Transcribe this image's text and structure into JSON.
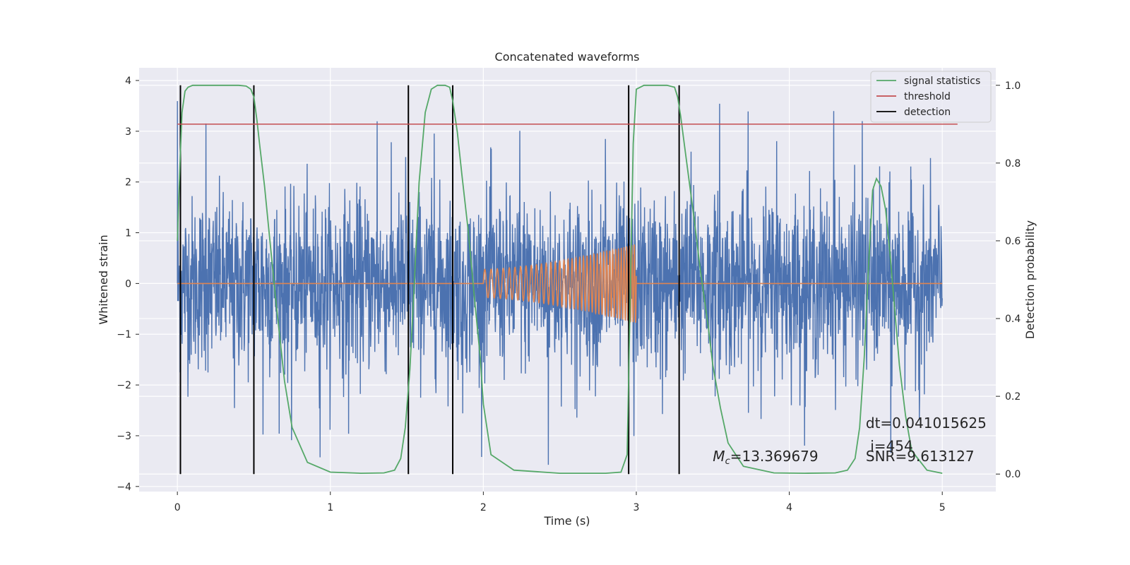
{
  "chart_data": {
    "type": "line",
    "title": "Concatenated waveforms",
    "xlabel": "Time (s)",
    "ylabel": "Whitened strain",
    "y2label": "Detection probability",
    "xlim": [
      -0.25,
      5.35
    ],
    "ylim": [
      -4.1,
      4.25
    ],
    "y2lim": [
      -0.045,
      1.045
    ],
    "xticks": [
      0,
      1,
      2,
      3,
      4,
      5
    ],
    "yticks": [
      -4,
      -3,
      -2,
      -1,
      0,
      1,
      2,
      3,
      4
    ],
    "y2ticks": [
      0.0,
      0.2,
      0.4,
      0.6,
      0.8,
      1.0
    ],
    "xtick_labels": [
      "0",
      "1",
      "2",
      "3",
      "4",
      "5"
    ],
    "ytick_labels": [
      "−4",
      "−3",
      "−2",
      "−1",
      "0",
      "1",
      "2",
      "3",
      "4"
    ],
    "y2tick_labels": [
      "0.0",
      "0.2",
      "0.4",
      "0.6",
      "0.8",
      "1.0"
    ],
    "grid": true,
    "legend_position": "top-right",
    "colors": {
      "strain": "#4c72b0",
      "template": "#dd8452",
      "signal_statistics": "#55a868",
      "threshold": "#c44e52",
      "detection": "#000000",
      "background": "#eaeaf2",
      "grid": "#ffffff"
    },
    "series": [
      {
        "name": "signal statistics",
        "axis": "right",
        "x": [
          0.0,
          0.01,
          0.02,
          0.03,
          0.05,
          0.07,
          0.1,
          0.2,
          0.3,
          0.4,
          0.45,
          0.48,
          0.5,
          0.52,
          0.54,
          0.57,
          0.6,
          0.64,
          0.67,
          0.7,
          0.75,
          0.85,
          1.0,
          1.2,
          1.35,
          1.42,
          1.46,
          1.49,
          1.52,
          1.55,
          1.58,
          1.62,
          1.66,
          1.7,
          1.75,
          1.78,
          1.8,
          1.83,
          1.86,
          1.9,
          1.94,
          1.98,
          2.0,
          2.05,
          2.2,
          2.5,
          2.8,
          2.9,
          2.94,
          2.96,
          2.98,
          3.0,
          3.05,
          3.15,
          3.2,
          3.25,
          3.27,
          3.29,
          3.31,
          3.34,
          3.38,
          3.42,
          3.47,
          3.5,
          3.55,
          3.6,
          3.7,
          3.9,
          4.1,
          4.3,
          4.38,
          4.43,
          4.46,
          4.49,
          4.52,
          4.545,
          4.57,
          4.6,
          4.63,
          4.66,
          4.69,
          4.72,
          4.76,
          4.8,
          4.9,
          5.0
        ],
        "values": [
          0.6,
          0.72,
          0.83,
          0.93,
          0.985,
          0.995,
          1.0,
          1.0,
          1.0,
          1.0,
          0.998,
          0.99,
          0.97,
          0.91,
          0.84,
          0.74,
          0.62,
          0.46,
          0.35,
          0.24,
          0.12,
          0.03,
          0.005,
          0.002,
          0.003,
          0.01,
          0.04,
          0.12,
          0.27,
          0.5,
          0.75,
          0.93,
          0.99,
          1.0,
          1.0,
          0.995,
          0.96,
          0.88,
          0.77,
          0.63,
          0.46,
          0.3,
          0.18,
          0.05,
          0.01,
          0.002,
          0.002,
          0.005,
          0.05,
          0.45,
          0.85,
          0.99,
          1.0,
          1.0,
          1.0,
          0.995,
          0.97,
          0.92,
          0.86,
          0.77,
          0.65,
          0.52,
          0.38,
          0.28,
          0.17,
          0.08,
          0.02,
          0.003,
          0.002,
          0.003,
          0.01,
          0.04,
          0.12,
          0.3,
          0.55,
          0.73,
          0.76,
          0.74,
          0.68,
          0.56,
          0.42,
          0.28,
          0.15,
          0.06,
          0.01,
          0.002
        ]
      },
      {
        "name": "threshold",
        "axis": "right",
        "x": [
          0.0,
          5.1
        ],
        "values": [
          0.9,
          0.9
        ]
      },
      {
        "name": "detection",
        "axis": "right",
        "x": [
          0.02,
          0.5,
          1.51,
          1.8,
          2.95,
          3.28
        ],
        "range": [
          0.0,
          1.0
        ]
      }
    ],
    "annotations": [
      {
        "text_prefix": "M",
        "text_sub": "c",
        "text_rest": "=13.369679",
        "x": 3.5,
        "y": -3.5
      },
      {
        "text": "dt=0.041015625",
        "x": 4.5,
        "y": -2.85
      },
      {
        "text": " i=454",
        "x": 4.5,
        "y": -3.3
      },
      {
        "text": "SNR=9.613127",
        "x": 4.5,
        "y": -3.5
      }
    ]
  }
}
